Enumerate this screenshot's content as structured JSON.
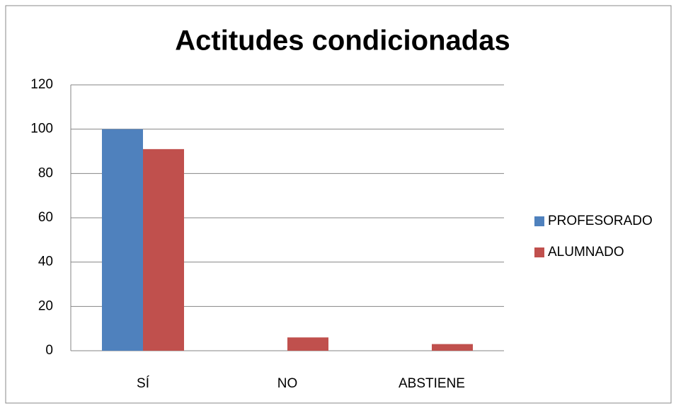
{
  "chart_data": {
    "type": "bar",
    "title": "Actitudes condicionadas",
    "categories": [
      "SÍ",
      "NO",
      "ABSTIENE"
    ],
    "series": [
      {
        "name": "PROFESORADO",
        "color": "#4f81bd",
        "values": [
          100,
          0,
          0
        ]
      },
      {
        "name": "ALUMNADO",
        "color": "#c0504d",
        "values": [
          91,
          6,
          3
        ]
      }
    ],
    "ylim": [
      0,
      120
    ],
    "yticks": [
      0,
      20,
      40,
      60,
      80,
      100,
      120
    ],
    "grid": true,
    "legend": "right"
  }
}
